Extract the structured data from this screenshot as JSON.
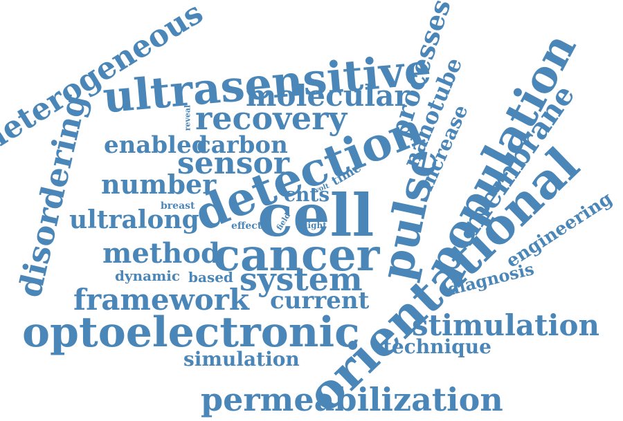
{
  "color": "#4a86b7",
  "words": [
    {
      "text": "heterogeneous"
    },
    {
      "text": "ultrasensitive"
    },
    {
      "text": "molecular"
    },
    {
      "text": "recovery"
    },
    {
      "text": "reveal"
    },
    {
      "text": "enabled"
    },
    {
      "text": "carbon"
    },
    {
      "text": "sensor"
    },
    {
      "text": "number"
    },
    {
      "text": "disordering"
    },
    {
      "text": "detection"
    },
    {
      "text": "processes"
    },
    {
      "text": "nanotube"
    },
    {
      "text": "increase"
    },
    {
      "text": "population"
    },
    {
      "text": "membrane"
    },
    {
      "text": "time"
    },
    {
      "text": "volt"
    },
    {
      "text": "cnts"
    },
    {
      "text": "breast"
    },
    {
      "text": "ultralong"
    },
    {
      "text": "cell"
    },
    {
      "text": "effect"
    },
    {
      "text": "field"
    },
    {
      "text": "light"
    },
    {
      "text": "pulse"
    },
    {
      "text": "orientational"
    },
    {
      "text": "engineering"
    },
    {
      "text": "method"
    },
    {
      "text": "cancer"
    },
    {
      "text": "dynamic"
    },
    {
      "text": "based"
    },
    {
      "text": "system"
    },
    {
      "text": "diagnosis"
    },
    {
      "text": "framework"
    },
    {
      "text": "current"
    },
    {
      "text": "optoelectronic"
    },
    {
      "text": "stimulation"
    },
    {
      "text": "technique"
    },
    {
      "text": "simulation"
    },
    {
      "text": "permeabilization"
    }
  ]
}
